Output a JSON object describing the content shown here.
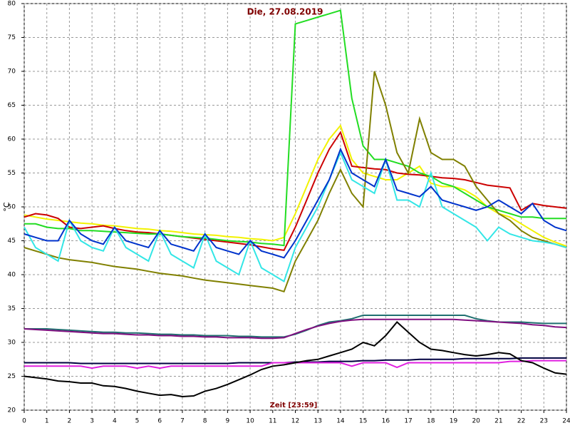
{
  "chart_data": {
    "type": "line",
    "title": "Die, 27.08.2019",
    "x_label": "Zeit [23:59]",
    "y_label": "°C",
    "x": [
      0,
      0.5,
      1,
      1.5,
      2,
      2.5,
      3,
      3.5,
      4,
      4.5,
      5,
      5.5,
      6,
      6.5,
      7,
      7.5,
      8,
      8.5,
      9,
      9.5,
      10,
      10.5,
      11,
      11.5,
      12,
      12.5,
      13,
      13.5,
      14,
      14.5,
      15,
      15.5,
      16,
      16.5,
      17,
      17.5,
      18,
      18.5,
      19,
      19.5,
      20,
      20.5,
      21,
      21.5,
      22,
      22.5,
      23,
      23.5,
      24
    ],
    "xlim": [
      0,
      24
    ],
    "xticks": [
      0,
      1,
      2,
      3,
      4,
      5,
      6,
      7,
      8,
      9,
      10,
      11,
      12,
      13,
      14,
      15,
      16,
      17,
      18,
      19,
      20,
      21,
      22,
      23,
      24
    ],
    "ylim": [
      20,
      80
    ],
    "yticks": [
      20,
      25,
      30,
      35,
      40,
      45,
      50,
      55,
      60,
      65,
      70,
      75,
      80
    ],
    "grid": true,
    "series": [
      {
        "color": "#f2f200",
        "values": [
          48.8,
          48.5,
          48.2,
          48,
          47.8,
          47.6,
          47.5,
          47.3,
          47.2,
          47,
          46.8,
          46.7,
          46.5,
          46.4,
          46.2,
          46,
          45.9,
          45.8,
          45.6,
          45.5,
          45.3,
          45.2,
          45,
          45.5,
          49,
          53,
          57,
          60,
          62,
          57,
          55,
          54.5,
          54,
          54,
          55,
          56,
          53.5,
          53,
          53,
          52.5,
          51.5,
          50,
          49,
          48.5,
          47.5,
          46.5,
          45.5,
          44.8,
          44.2
        ]
      },
      {
        "color": "#cc0000",
        "values": [
          48.5,
          49,
          48.8,
          48.3,
          47,
          46.8,
          47,
          47.2,
          46.8,
          46.5,
          46.3,
          46.2,
          46,
          45.8,
          45.6,
          45.4,
          45.2,
          45,
          44.8,
          44.6,
          44.4,
          44.1,
          43.8,
          43.6,
          47,
          51,
          55,
          58.5,
          61,
          56,
          55.8,
          55.6,
          55.5,
          55,
          54.8,
          54.7,
          54.5,
          54.3,
          54.2,
          54,
          53.6,
          53.2,
          53,
          52.8,
          49.5,
          50.5,
          50.2,
          50,
          49.8
        ]
      },
      {
        "color": "#22dd22",
        "values": [
          47.5,
          47.5,
          47,
          46.8,
          46.8,
          46.5,
          46.5,
          46.4,
          46.3,
          46.2,
          46.1,
          46,
          46,
          45.8,
          45.6,
          45.5,
          45.4,
          45.2,
          45,
          44.9,
          44.8,
          44.6,
          44.5,
          44.3,
          77,
          77.5,
          78,
          78.5,
          79,
          66,
          59,
          57,
          57,
          56.5,
          56,
          55,
          54.5,
          53.5,
          53,
          52,
          51,
          50,
          49.5,
          49,
          48.5,
          48.5,
          48.3,
          48.3,
          48.3
        ]
      },
      {
        "color": "#808000",
        "values": [
          44,
          43.5,
          43,
          42.5,
          42.2,
          42,
          41.8,
          41.5,
          41.2,
          41,
          40.8,
          40.5,
          40.2,
          40,
          39.8,
          39.5,
          39.2,
          39,
          38.8,
          38.6,
          38.4,
          38.2,
          38,
          37.5,
          42,
          45,
          48,
          52,
          55.5,
          52,
          50,
          70,
          65,
          58,
          55,
          63,
          58,
          57,
          57,
          56,
          53,
          51,
          49,
          48,
          46.5,
          45.5,
          45,
          44.5,
          44
        ]
      },
      {
        "color": "#33e6e6",
        "values": [
          47,
          44,
          43,
          42,
          48,
          45,
          44,
          43.5,
          47,
          44,
          43,
          42,
          46.5,
          43,
          42,
          41,
          46,
          42,
          41,
          40,
          45,
          41,
          40,
          39,
          44,
          47,
          50,
          54,
          58,
          54,
          53,
          52,
          57,
          51,
          51,
          50,
          55,
          50,
          49,
          48,
          47,
          45,
          47,
          46,
          45.5,
          45,
          44.8,
          44.5,
          44
        ]
      },
      {
        "color": "#0033cc",
        "values": [
          46,
          45.5,
          45,
          45,
          48,
          46,
          45,
          44.5,
          47,
          45,
          44.5,
          44,
          46.5,
          44.5,
          44,
          43.5,
          46,
          44,
          43.5,
          43,
          45,
          43.5,
          43,
          42.5,
          45,
          48,
          51,
          54,
          58.5,
          55,
          54,
          53,
          57,
          52.5,
          52,
          51.5,
          53,
          51,
          50.5,
          50,
          49.5,
          50,
          51,
          50,
          49,
          50.5,
          48,
          47,
          46.5
        ]
      },
      {
        "color": "#207070",
        "values": [
          32,
          32,
          32,
          31.9,
          31.8,
          31.7,
          31.6,
          31.5,
          31.5,
          31.4,
          31.4,
          31.3,
          31.2,
          31.2,
          31.1,
          31.1,
          31,
          31,
          31,
          30.9,
          30.9,
          30.8,
          30.8,
          30.8,
          31.2,
          31.8,
          32.5,
          33,
          33.2,
          33.5,
          34,
          34,
          34,
          34,
          34,
          34,
          34,
          34,
          34,
          34,
          33.5,
          33.2,
          33,
          33,
          33,
          32.9,
          32.8,
          32.8,
          32.8
        ]
      },
      {
        "color": "#801080",
        "values": [
          32,
          31.9,
          31.8,
          31.7,
          31.6,
          31.5,
          31.4,
          31.3,
          31.3,
          31.2,
          31.1,
          31.1,
          31,
          31,
          30.9,
          30.9,
          30.8,
          30.8,
          30.7,
          30.7,
          30.7,
          30.6,
          30.6,
          30.7,
          31.3,
          31.9,
          32.4,
          32.8,
          33.1,
          33.3,
          33.4,
          33.4,
          33.4,
          33.4,
          33.4,
          33.4,
          33.4,
          33.4,
          33.4,
          33.3,
          33.2,
          33.1,
          33,
          32.9,
          32.8,
          32.6,
          32.5,
          32.3,
          32.2
        ]
      },
      {
        "color": "#000040",
        "values": [
          27,
          27,
          27,
          27,
          27,
          26.9,
          26.9,
          26.9,
          26.9,
          26.9,
          26.9,
          26.9,
          26.9,
          26.9,
          26.9,
          26.9,
          26.9,
          26.9,
          26.9,
          27,
          27,
          27,
          27,
          27,
          27.1,
          27.1,
          27.1,
          27.2,
          27.2,
          27.2,
          27.3,
          27.3,
          27.4,
          27.4,
          27.4,
          27.5,
          27.5,
          27.5,
          27.5,
          27.6,
          27.6,
          27.6,
          27.6,
          27.6,
          27.7,
          27.7,
          27.7,
          27.7,
          27.7
        ]
      },
      {
        "color": "#e020e0",
        "values": [
          26.5,
          26.5,
          26.5,
          26.5,
          26.5,
          26.5,
          26.2,
          26.5,
          26.5,
          26.5,
          26.2,
          26.5,
          26.2,
          26.5,
          26.5,
          26.5,
          26.5,
          26.5,
          26.5,
          26.5,
          26.5,
          26.5,
          27,
          27,
          27,
          27,
          27,
          27,
          27,
          26.5,
          27,
          27,
          27,
          26.3,
          27,
          27,
          27,
          27,
          27,
          27,
          27,
          27,
          27,
          27.2,
          27.2,
          27.3,
          27.3,
          27.3,
          27.3
        ]
      },
      {
        "color": "#000000",
        "values": [
          25,
          24.8,
          24.6,
          24.3,
          24.2,
          24,
          24,
          23.6,
          23.5,
          23.2,
          22.8,
          22.5,
          22.2,
          22.3,
          22,
          22.1,
          22.8,
          23.2,
          23.8,
          24.5,
          25.2,
          26,
          26.5,
          26.7,
          27,
          27.3,
          27.5,
          28,
          28.5,
          29,
          30,
          29.5,
          31,
          33,
          31.5,
          30,
          29,
          28.8,
          28.5,
          28.2,
          28,
          28.2,
          28.5,
          28.3,
          27.3,
          27,
          26.2,
          25.5,
          25.3
        ]
      }
    ]
  }
}
